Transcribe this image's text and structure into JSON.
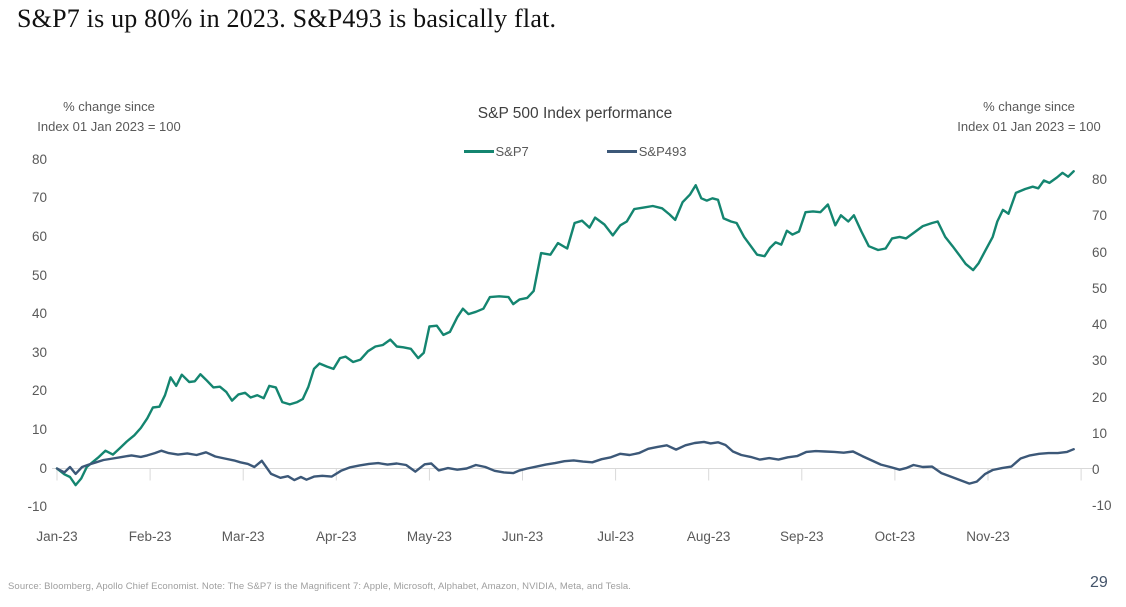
{
  "page": {
    "title": "S&P7 is up 80% in 2023. S&P493 is basically flat.",
    "source_note": "Source: Bloomberg, Apollo Chief Economist. Note: The S&P7 is the Magnificent 7: Apple, Microsoft, Alphabet, Amazon, NVIDIA, Meta, and Tesla.",
    "page_number": "29"
  },
  "chart": {
    "title": "S&P 500 Index performance",
    "left_axis_note_line1": "% change since",
    "left_axis_note_line2": "Index 01 Jan 2023 = 100",
    "right_axis_note_line1": "% change since",
    "right_axis_note_line2": "Index 01 Jan 2023 = 100"
  },
  "chart_data": {
    "type": "line",
    "title": "S&P 500 Index performance",
    "xlabel": "",
    "ylabel": "% change since Index 01 Jan 2023 = 100",
    "x_tick_labels": [
      "Jan-23",
      "Feb-23",
      "Mar-23",
      "Apr-23",
      "May-23",
      "Jun-23",
      "Jul-23",
      "Aug-23",
      "Sep-23",
      "Oct-23",
      "Nov-23"
    ],
    "y_ticks": [
      80,
      70,
      60,
      50,
      40,
      30,
      20,
      10,
      0,
      -10
    ],
    "ylim": [
      -10,
      82
    ],
    "grid": "zero-line-only",
    "gridline_color": "#d9d9d9",
    "legend_position": "top",
    "series": [
      {
        "name": "S&P7",
        "color": "#148570",
        "points": [
          [
            0,
            0
          ],
          [
            0.08,
            -1.5
          ],
          [
            0.14,
            -2.2
          ],
          [
            0.2,
            -4.3
          ],
          [
            0.26,
            -2.6
          ],
          [
            0.32,
            0.4
          ],
          [
            0.38,
            1.6
          ],
          [
            0.45,
            3
          ],
          [
            0.52,
            4.6
          ],
          [
            0.6,
            3.6
          ],
          [
            0.68,
            5.4
          ],
          [
            0.75,
            7
          ],
          [
            0.83,
            8.6
          ],
          [
            0.9,
            10.5
          ],
          [
            0.97,
            13
          ],
          [
            1.03,
            15.8
          ],
          [
            1.1,
            16
          ],
          [
            1.16,
            19
          ],
          [
            1.22,
            23.6
          ],
          [
            1.28,
            21.4
          ],
          [
            1.34,
            24.3
          ],
          [
            1.42,
            22.4
          ],
          [
            1.48,
            22.6
          ],
          [
            1.54,
            24.4
          ],
          [
            1.6,
            23
          ],
          [
            1.68,
            21
          ],
          [
            1.75,
            21.2
          ],
          [
            1.82,
            19.8
          ],
          [
            1.88,
            17.6
          ],
          [
            1.95,
            19.2
          ],
          [
            2.02,
            19.6
          ],
          [
            2.08,
            18.4
          ],
          [
            2.15,
            19
          ],
          [
            2.22,
            18.2
          ],
          [
            2.28,
            21.4
          ],
          [
            2.35,
            21
          ],
          [
            2.42,
            17.2
          ],
          [
            2.5,
            16.6
          ],
          [
            2.58,
            17.2
          ],
          [
            2.64,
            18
          ],
          [
            2.7,
            21.2
          ],
          [
            2.76,
            25.8
          ],
          [
            2.82,
            27.2
          ],
          [
            2.9,
            26.4
          ],
          [
            2.97,
            25.8
          ],
          [
            3.04,
            28.6
          ],
          [
            3.1,
            29
          ],
          [
            3.18,
            27.6
          ],
          [
            3.26,
            28.2
          ],
          [
            3.34,
            30.4
          ],
          [
            3.42,
            31.6
          ],
          [
            3.5,
            32
          ],
          [
            3.58,
            33.4
          ],
          [
            3.65,
            31.6
          ],
          [
            3.72,
            31.4
          ],
          [
            3.8,
            31
          ],
          [
            3.88,
            28.6
          ],
          [
            3.94,
            30
          ],
          [
            4.0,
            36.8
          ],
          [
            4.08,
            37
          ],
          [
            4.15,
            34.6
          ],
          [
            4.22,
            35.4
          ],
          [
            4.3,
            39.2
          ],
          [
            4.36,
            41.4
          ],
          [
            4.42,
            40
          ],
          [
            4.5,
            40.6
          ],
          [
            4.58,
            41.4
          ],
          [
            4.65,
            44.4
          ],
          [
            4.75,
            44.6
          ],
          [
            4.85,
            44.4
          ],
          [
            4.9,
            42.6
          ],
          [
            4.97,
            43.8
          ],
          [
            5.05,
            44.2
          ],
          [
            5.12,
            46
          ],
          [
            5.2,
            55.8
          ],
          [
            5.3,
            55.4
          ],
          [
            5.38,
            58.4
          ],
          [
            5.48,
            57
          ],
          [
            5.56,
            63.6
          ],
          [
            5.64,
            64.2
          ],
          [
            5.72,
            62.4
          ],
          [
            5.78,
            65
          ],
          [
            5.88,
            63.2
          ],
          [
            5.97,
            60.4
          ],
          [
            6.05,
            63
          ],
          [
            6.12,
            64
          ],
          [
            6.2,
            67.2
          ],
          [
            6.3,
            67.6
          ],
          [
            6.4,
            68
          ],
          [
            6.5,
            67.4
          ],
          [
            6.58,
            65.8
          ],
          [
            6.64,
            64.4
          ],
          [
            6.72,
            69
          ],
          [
            6.8,
            71
          ],
          [
            6.86,
            73.4
          ],
          [
            6.92,
            70
          ],
          [
            6.98,
            69.4
          ],
          [
            7.04,
            70
          ],
          [
            7.1,
            69.6
          ],
          [
            7.16,
            64.8
          ],
          [
            7.24,
            64
          ],
          [
            7.3,
            63.6
          ],
          [
            7.38,
            60
          ],
          [
            7.44,
            58
          ],
          [
            7.52,
            55.4
          ],
          [
            7.6,
            55
          ],
          [
            7.66,
            57.2
          ],
          [
            7.72,
            58.6
          ],
          [
            7.78,
            58
          ],
          [
            7.84,
            61.6
          ],
          [
            7.9,
            60.6
          ],
          [
            7.97,
            61.4
          ],
          [
            8.04,
            66.4
          ],
          [
            8.12,
            66.6
          ],
          [
            8.2,
            66.4
          ],
          [
            8.28,
            68.4
          ],
          [
            8.36,
            63
          ],
          [
            8.42,
            65.6
          ],
          [
            8.5,
            64
          ],
          [
            8.56,
            65.6
          ],
          [
            8.64,
            61.4
          ],
          [
            8.72,
            57.6
          ],
          [
            8.82,
            56.6
          ],
          [
            8.9,
            57
          ],
          [
            8.97,
            59.6
          ],
          [
            9.05,
            60
          ],
          [
            9.12,
            59.6
          ],
          [
            9.2,
            61
          ],
          [
            9.3,
            62.8
          ],
          [
            9.4,
            63.6
          ],
          [
            9.46,
            64
          ],
          [
            9.54,
            60
          ],
          [
            9.62,
            57.6
          ],
          [
            9.7,
            55
          ],
          [
            9.76,
            53
          ],
          [
            9.84,
            51.4
          ],
          [
            9.9,
            53.2
          ],
          [
            9.97,
            56.4
          ],
          [
            10.05,
            60
          ],
          [
            10.1,
            64
          ],
          [
            10.16,
            67
          ],
          [
            10.22,
            66
          ],
          [
            10.3,
            71.4
          ],
          [
            10.4,
            72.4
          ],
          [
            10.48,
            73
          ],
          [
            10.54,
            72.6
          ],
          [
            10.6,
            74.6
          ],
          [
            10.66,
            74
          ],
          [
            10.74,
            75.4
          ],
          [
            10.8,
            76.6
          ],
          [
            10.86,
            75.6
          ],
          [
            10.92,
            77
          ]
        ]
      },
      {
        "name": "S&P493",
        "color": "#3c5878",
        "points": [
          [
            0,
            0
          ],
          [
            0.08,
            -1
          ],
          [
            0.14,
            0.4
          ],
          [
            0.2,
            -1.4
          ],
          [
            0.27,
            0.4
          ],
          [
            0.34,
            1
          ],
          [
            0.42,
            1.6
          ],
          [
            0.5,
            2.2
          ],
          [
            0.6,
            2.6
          ],
          [
            0.7,
            3
          ],
          [
            0.8,
            3.4
          ],
          [
            0.9,
            3
          ],
          [
            0.97,
            3.4
          ],
          [
            1.05,
            4
          ],
          [
            1.12,
            4.6
          ],
          [
            1.2,
            4
          ],
          [
            1.3,
            3.6
          ],
          [
            1.4,
            3.9
          ],
          [
            1.5,
            3.5
          ],
          [
            1.6,
            4.2
          ],
          [
            1.7,
            3.1
          ],
          [
            1.8,
            2.6
          ],
          [
            1.9,
            2.1
          ],
          [
            1.97,
            1.6
          ],
          [
            2.05,
            1.2
          ],
          [
            2.12,
            0.4
          ],
          [
            2.2,
            2
          ],
          [
            2.3,
            -1.4
          ],
          [
            2.4,
            -2.4
          ],
          [
            2.48,
            -2
          ],
          [
            2.55,
            -3
          ],
          [
            2.62,
            -2.2
          ],
          [
            2.68,
            -2.9
          ],
          [
            2.76,
            -2.1
          ],
          [
            2.85,
            -1.9
          ],
          [
            2.95,
            -2.1
          ],
          [
            3.05,
            -0.6
          ],
          [
            3.15,
            0.3
          ],
          [
            3.25,
            0.8
          ],
          [
            3.35,
            1.2
          ],
          [
            3.45,
            1.4
          ],
          [
            3.55,
            1
          ],
          [
            3.65,
            1.3
          ],
          [
            3.75,
            0.9
          ],
          [
            3.85,
            -0.8
          ],
          [
            3.95,
            1.1
          ],
          [
            4.02,
            1.3
          ],
          [
            4.1,
            -0.5
          ],
          [
            4.2,
            0.1
          ],
          [
            4.3,
            -0.3
          ],
          [
            4.4,
            0
          ],
          [
            4.5,
            0.9
          ],
          [
            4.6,
            0.4
          ],
          [
            4.7,
            -0.6
          ],
          [
            4.8,
            -1
          ],
          [
            4.9,
            -1.2
          ],
          [
            4.97,
            -0.5
          ],
          [
            5.05,
            0
          ],
          [
            5.15,
            0.5
          ],
          [
            5.25,
            1
          ],
          [
            5.35,
            1.4
          ],
          [
            5.45,
            1.9
          ],
          [
            5.55,
            2.1
          ],
          [
            5.65,
            1.8
          ],
          [
            5.75,
            1.6
          ],
          [
            5.85,
            2.4
          ],
          [
            5.95,
            2.9
          ],
          [
            6.05,
            3.8
          ],
          [
            6.15,
            3.5
          ],
          [
            6.25,
            4
          ],
          [
            6.35,
            5.1
          ],
          [
            6.45,
            5.6
          ],
          [
            6.55,
            6
          ],
          [
            6.65,
            4.9
          ],
          [
            6.75,
            6
          ],
          [
            6.85,
            6.6
          ],
          [
            6.95,
            6.9
          ],
          [
            7.02,
            6.5
          ],
          [
            7.1,
            6.8
          ],
          [
            7.18,
            6.1
          ],
          [
            7.26,
            4.4
          ],
          [
            7.35,
            3.5
          ],
          [
            7.45,
            3
          ],
          [
            7.55,
            2.3
          ],
          [
            7.65,
            2.7
          ],
          [
            7.75,
            2.3
          ],
          [
            7.85,
            2.9
          ],
          [
            7.95,
            3.2
          ],
          [
            8.05,
            4.3
          ],
          [
            8.15,
            4.5
          ],
          [
            8.25,
            4.4
          ],
          [
            8.35,
            4.3
          ],
          [
            8.45,
            4.1
          ],
          [
            8.55,
            4.4
          ],
          [
            8.65,
            3.2
          ],
          [
            8.75,
            2.1
          ],
          [
            8.85,
            1
          ],
          [
            8.95,
            0.4
          ],
          [
            9.05,
            -0.3
          ],
          [
            9.12,
            0.1
          ],
          [
            9.2,
            0.9
          ],
          [
            9.3,
            0.4
          ],
          [
            9.4,
            0.5
          ],
          [
            9.5,
            -1.2
          ],
          [
            9.6,
            -2.1
          ],
          [
            9.7,
            -3
          ],
          [
            9.8,
            -3.9
          ],
          [
            9.88,
            -3.4
          ],
          [
            9.97,
            -1.4
          ],
          [
            10.05,
            -0.4
          ],
          [
            10.15,
            0.1
          ],
          [
            10.25,
            0.5
          ],
          [
            10.35,
            2.6
          ],
          [
            10.45,
            3.4
          ],
          [
            10.55,
            3.8
          ],
          [
            10.65,
            4
          ],
          [
            10.75,
            4
          ],
          [
            10.85,
            4.3
          ],
          [
            10.92,
            5
          ]
        ]
      }
    ]
  }
}
